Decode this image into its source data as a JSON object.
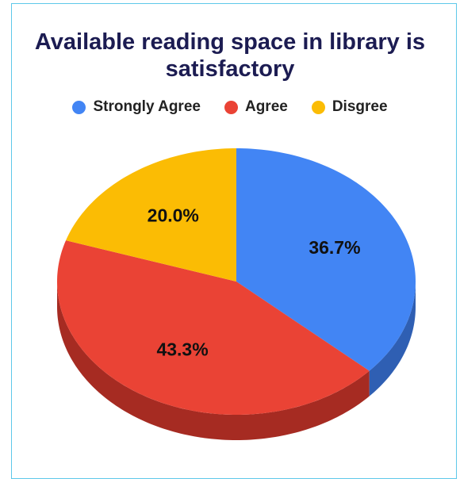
{
  "chart_data": {
    "type": "pie",
    "title": "Available reading space in library is satisfactory",
    "categories": [
      "Strongly Agree",
      "Agree",
      "Disgree"
    ],
    "values": [
      36.7,
      43.3,
      20.0
    ],
    "value_labels": [
      "36.7%",
      "43.3%",
      "20.0%"
    ],
    "colors": [
      "#4285f4",
      "#ea4335",
      "#fbbc04"
    ],
    "side_colors": [
      "#2f5fb3",
      "#a62b22",
      "#b38600"
    ],
    "legend": "top"
  }
}
